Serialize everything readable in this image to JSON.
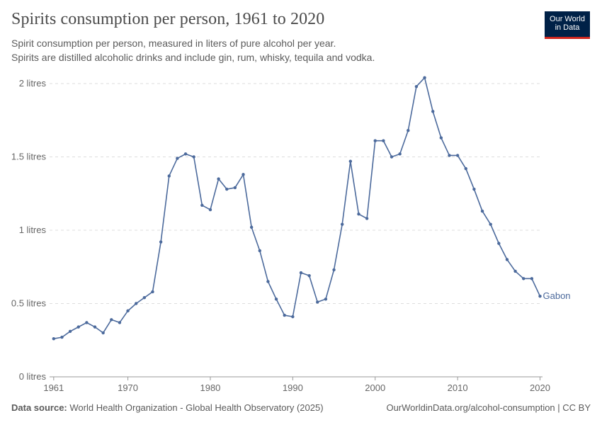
{
  "header": {
    "title": "Spirits consumption per person, 1961 to 2020",
    "subtitle_line1": "Spirit consumption per person, measured in liters of pure alcohol per year.",
    "subtitle_line2": "Spirits are distilled alcoholic drinks and include gin, rum, whisky, tequila and vodka."
  },
  "logo": {
    "line1": "Our World",
    "line2": "in Data"
  },
  "footer": {
    "source_label": "Data source:",
    "source_text": "World Health Organization - Global Health Observatory (2025)",
    "right_text": "OurWorldinData.org/alcohol-consumption | CC BY"
  },
  "colors": {
    "line": "#4c6a9c",
    "grid": "#dddddd",
    "axis": "#999999",
    "logo_bg": "#002147",
    "logo_accent": "#ce261e"
  },
  "chart_data": {
    "type": "line",
    "title": "Spirits consumption per person, 1961 to 2020",
    "xlim": [
      1960.5,
      2020.3
    ],
    "ylim": [
      0,
      2
    ],
    "x_ticks": [
      1961,
      1970,
      1980,
      1990,
      2000,
      2010,
      2020
    ],
    "y_ticks": [
      {
        "value": 0,
        "label": "0 litres"
      },
      {
        "value": 0.5,
        "label": "0.5 litres"
      },
      {
        "value": 1,
        "label": "1 litres"
      },
      {
        "value": 1.5,
        "label": "1.5 litres"
      },
      {
        "value": 2,
        "label": "2 litres"
      }
    ],
    "grid": "horizontal dashed",
    "series": [
      {
        "name": "Gabon",
        "x": [
          1961,
          1962,
          1963,
          1964,
          1965,
          1966,
          1967,
          1968,
          1969,
          1970,
          1971,
          1972,
          1973,
          1974,
          1975,
          1976,
          1977,
          1978,
          1979,
          1980,
          1981,
          1982,
          1983,
          1984,
          1985,
          1986,
          1987,
          1988,
          1989,
          1990,
          1991,
          1992,
          1993,
          1994,
          1995,
          1996,
          1997,
          1998,
          1999,
          2000,
          2001,
          2002,
          2003,
          2004,
          2005,
          2006,
          2007,
          2008,
          2009,
          2010,
          2011,
          2012,
          2013,
          2014,
          2015,
          2016,
          2017,
          2018,
          2019,
          2020
        ],
        "y": [
          0.26,
          0.27,
          0.31,
          0.34,
          0.37,
          0.34,
          0.3,
          0.39,
          0.37,
          0.45,
          0.5,
          0.54,
          0.58,
          0.92,
          1.37,
          1.49,
          1.52,
          1.5,
          1.17,
          1.14,
          1.35,
          1.28,
          1.29,
          1.38,
          1.02,
          0.86,
          0.65,
          0.53,
          0.42,
          0.41,
          0.71,
          0.69,
          0.51,
          0.53,
          0.73,
          1.04,
          1.47,
          1.11,
          1.08,
          1.61,
          1.61,
          1.5,
          1.52,
          1.68,
          1.98,
          2.04,
          1.81,
          1.63,
          1.51,
          1.51,
          1.42,
          1.28,
          1.13,
          1.04,
          0.91,
          0.8,
          0.72,
          0.67,
          0.67,
          0.55
        ]
      }
    ]
  }
}
